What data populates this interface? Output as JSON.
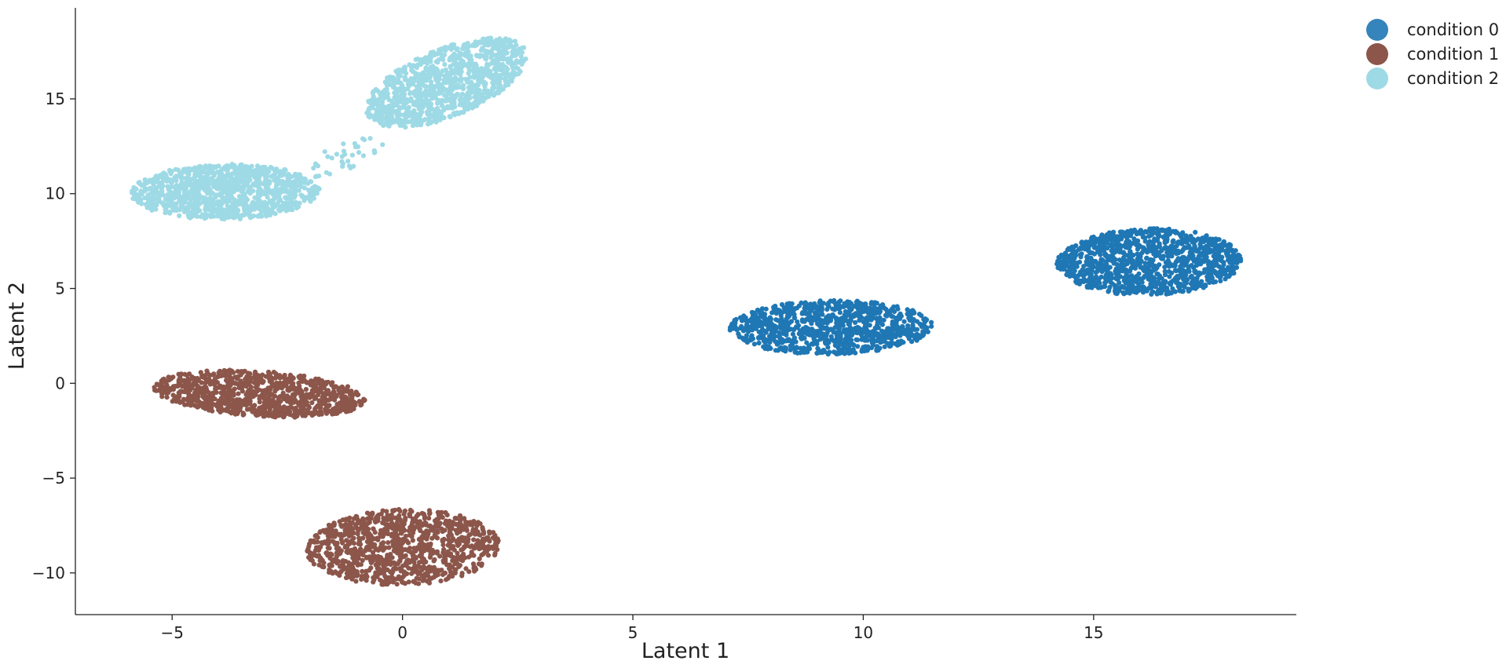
{
  "chart_data": {
    "type": "scatter",
    "title": "",
    "xlabel": "Latent 1",
    "ylabel": "Latent 2",
    "xlim": [
      -7.1,
      19.4
    ],
    "ylim": [
      -12.2,
      19.8
    ],
    "xticks": [
      -5,
      0,
      5,
      10,
      15
    ],
    "xtick_labels": [
      "−5",
      "0",
      "5",
      "10",
      "15"
    ],
    "yticks": [
      -10,
      -5,
      0,
      5,
      10,
      15
    ],
    "ytick_labels": [
      "−10",
      "−5",
      "0",
      "5",
      "10",
      "15"
    ],
    "grid": false,
    "legend_position": "outside-top-right",
    "series": [
      {
        "name": "condition 0",
        "color": "#1f77b4",
        "clusters": [
          {
            "center": [
              9.3,
              2.9
            ],
            "x_range": [
              7.1,
              11.5
            ],
            "y_range": [
              1.5,
              4.4
            ],
            "n": 900
          },
          {
            "center": [
              16.2,
              6.4
            ],
            "x_range": [
              14.2,
              18.2
            ],
            "y_range": [
              4.6,
              8.2
            ],
            "n": 1100
          }
        ]
      },
      {
        "name": "condition 1",
        "color": "#8c564b",
        "clusters": [
          {
            "center": [
              -3.2,
              -0.4
            ],
            "x_range": [
              -5.4,
              -0.8
            ],
            "y_range": [
              -1.9,
              0.8
            ],
            "n": 900
          },
          {
            "center": [
              0.2,
              -8.7
            ],
            "x_range": [
              -2.1,
              2.1
            ],
            "y_range": [
              -10.7,
              -6.6
            ],
            "n": 1000
          }
        ]
      },
      {
        "name": "condition 2",
        "color": "#9edae5",
        "clusters": [
          {
            "center": [
              -3.8,
              9.9
            ],
            "x_range": [
              -5.9,
              -1.8
            ],
            "y_range": [
              8.6,
              11.6
            ],
            "n": 1100
          },
          {
            "center": [
              1.0,
              16.0
            ],
            "x_range": [
              -0.8,
              2.7
            ],
            "y_range": [
              13.3,
              18.4
            ],
            "n": 1100
          },
          {
            "center": [
              -1.5,
              12.0
            ],
            "x_range": [
              -2.4,
              -0.4
            ],
            "y_range": [
              10.6,
              13.0
            ],
            "n": 40
          }
        ]
      }
    ]
  }
}
